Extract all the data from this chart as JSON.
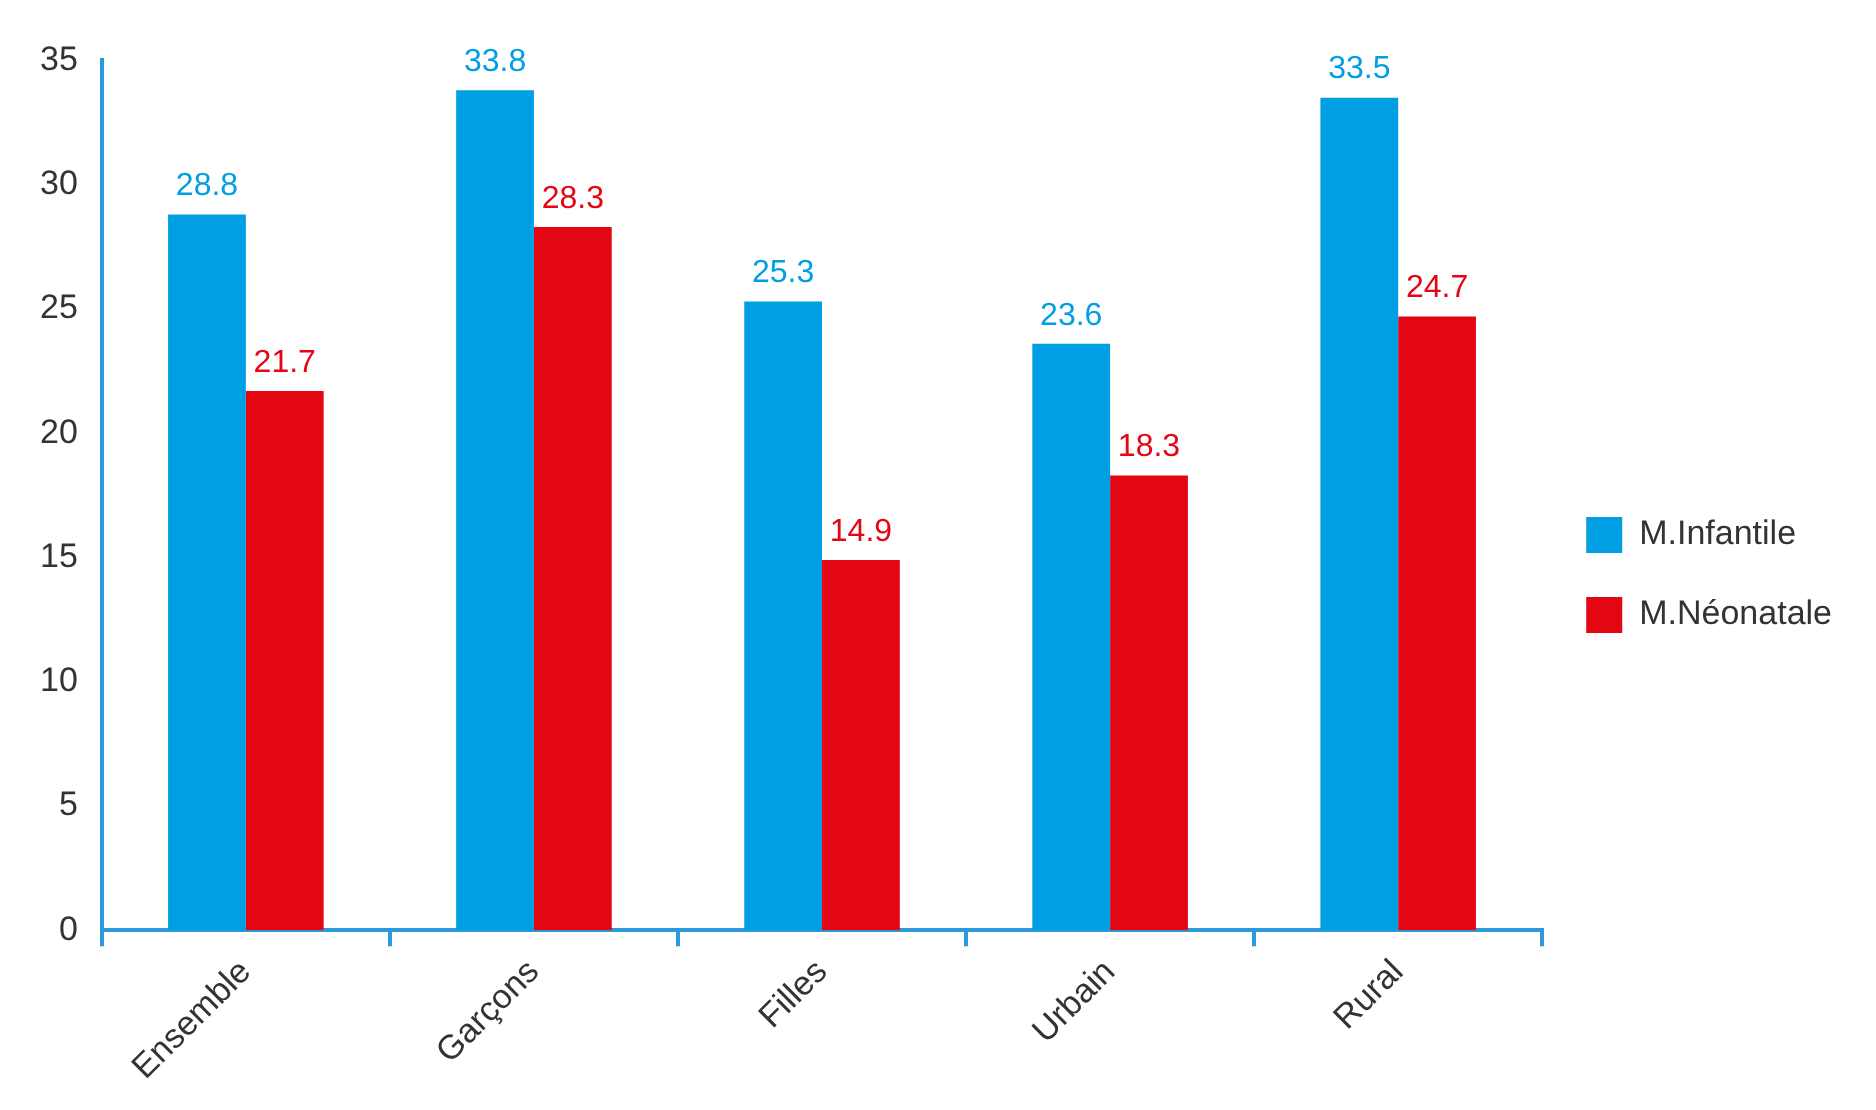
{
  "chart_data": {
    "type": "bar",
    "categories": [
      "Ensemble",
      "Garçons",
      "Filles",
      "Urbain",
      "Rural"
    ],
    "series": [
      {
        "name": "M.Infantile",
        "color": "#009fe3",
        "values": [
          28.8,
          33.8,
          25.3,
          23.6,
          33.5
        ]
      },
      {
        "name": "M.Néonatale",
        "color": "#e30613",
        "values": [
          21.7,
          28.3,
          14.9,
          18.3,
          24.7
        ]
      }
    ],
    "ylim": [
      0,
      35
    ],
    "yticks": [
      0,
      5,
      10,
      15,
      20,
      25,
      30,
      35
    ],
    "grid": false,
    "legend": "right",
    "data_labels": true
  }
}
